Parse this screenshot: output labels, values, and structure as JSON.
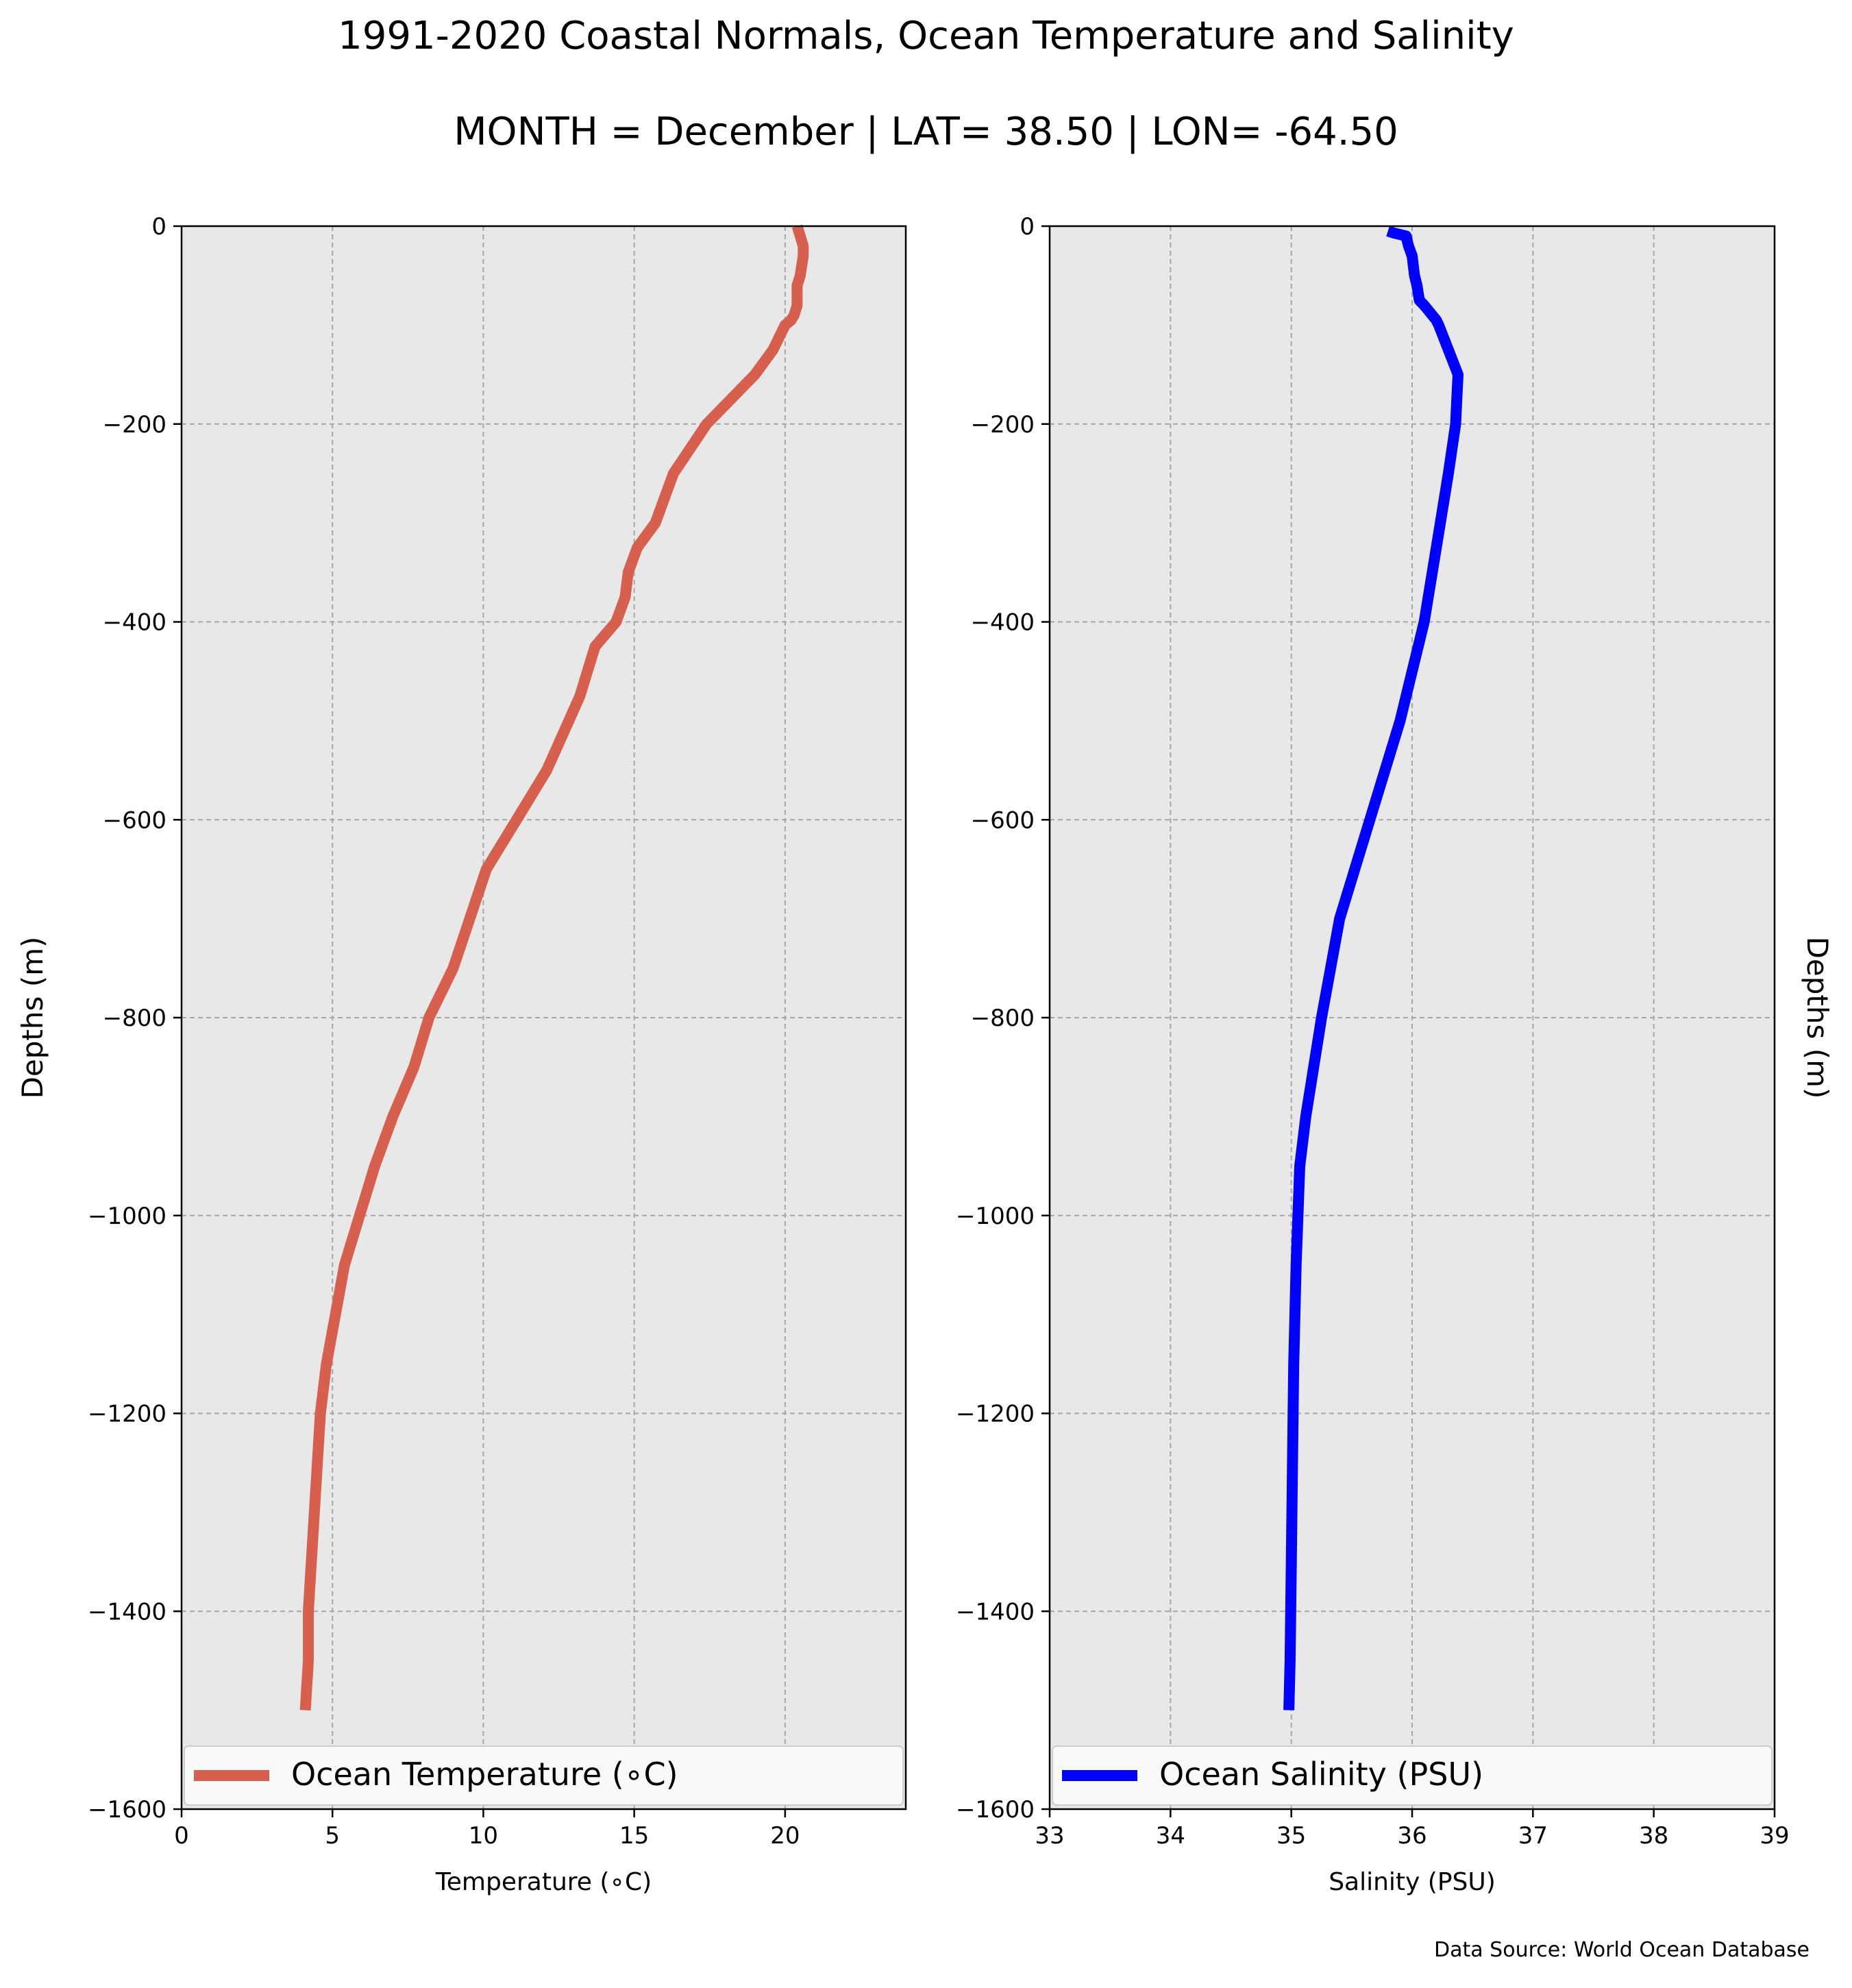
{
  "figure": {
    "title": "1991-2020 Coastal Normals, Ocean Temperature and Salinity",
    "subtitle": "MONTH = December | LAT= 38.50 | LON= -64.50",
    "source": "Data Source: World Ocean Database"
  },
  "chart_data": [
    {
      "type": "line",
      "xlabel": "Temperature (∘C)",
      "ylabel": "Depths (m)",
      "xlim": [
        0,
        24
      ],
      "ylim": [
        -1600,
        0
      ],
      "xticks": [
        0,
        5,
        10,
        15,
        20
      ],
      "yticks": [
        0,
        -200,
        -400,
        -600,
        -800,
        -1000,
        -1200,
        -1400,
        -1600
      ],
      "ytick_labels": [
        "0",
        "−200",
        "−400",
        "−600",
        "−800",
        "−1000",
        "−1200",
        "−1400",
        "−1600"
      ],
      "grid": true,
      "legend_position": "lower-center",
      "series": [
        {
          "name": "Ocean Temperature (∘C)",
          "color": "#d65f4e",
          "x": [
            20.4,
            20.5,
            20.6,
            20.6,
            20.5,
            20.4,
            20.4,
            20.4,
            20.3,
            20.2,
            20.0,
            19.6,
            19.0,
            18.2,
            17.4,
            16.3,
            15.7,
            15.1,
            14.8,
            14.7,
            14.4,
            13.7,
            13.2,
            12.1,
            11.1,
            10.1,
            9.0,
            8.2,
            7.7,
            7.0,
            6.4,
            5.9,
            5.4,
            5.1,
            4.8,
            4.6,
            4.5,
            4.4,
            4.3,
            4.2,
            4.2,
            4.1
          ],
          "y": [
            0,
            -10,
            -20,
            -30,
            -50,
            -60,
            -75,
            -80,
            -90,
            -95,
            -100,
            -125,
            -150,
            -175,
            -200,
            -250,
            -300,
            -325,
            -350,
            -375,
            -400,
            -425,
            -475,
            -550,
            -600,
            -650,
            -750,
            -800,
            -850,
            -900,
            -950,
            -1000,
            -1050,
            -1100,
            -1150,
            -1200,
            -1250,
            -1300,
            -1350,
            -1400,
            -1450,
            -1500
          ]
        }
      ]
    },
    {
      "type": "line",
      "xlabel": "Salinity (PSU)",
      "ylabel": "Depths (m)",
      "xlim": [
        33,
        39
      ],
      "ylim": [
        -1600,
        0
      ],
      "xticks": [
        33,
        34,
        35,
        36,
        37,
        38,
        39
      ],
      "yticks": [
        0,
        -200,
        -400,
        -600,
        -800,
        -1000,
        -1200,
        -1400,
        -1600
      ],
      "ytick_labels": [
        "0",
        "−200",
        "−400",
        "−600",
        "−800",
        "−1000",
        "−1200",
        "−1400",
        "−1600"
      ],
      "grid": true,
      "legend_position": "lower-center",
      "series": [
        {
          "name": "Ocean Salinity (PSU)",
          "color": "#0000ff",
          "x": [
            35.8,
            35.85,
            35.95,
            35.97,
            36.0,
            36.02,
            36.04,
            36.06,
            36.1,
            36.2,
            36.22,
            36.3,
            36.38,
            36.37,
            36.36,
            36.3,
            36.2,
            36.1,
            35.9,
            35.65,
            35.4,
            35.25,
            35.12,
            35.07,
            35.04,
            35.02,
            35.01,
            35.0,
            34.99,
            34.98
          ],
          "y": [
            -5,
            -7,
            -10,
            -20,
            -30,
            -50,
            -60,
            -75,
            -80,
            -95,
            -100,
            -125,
            -150,
            -175,
            -200,
            -250,
            -325,
            -400,
            -500,
            -600,
            -700,
            -800,
            -900,
            -950,
            -1050,
            -1150,
            -1250,
            -1350,
            -1450,
            -1500
          ]
        }
      ]
    }
  ]
}
